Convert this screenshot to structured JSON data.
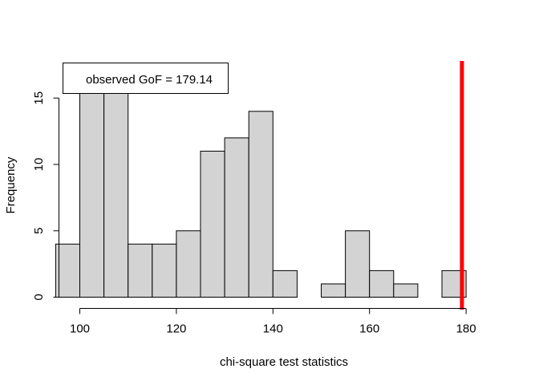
{
  "chart_data": {
    "type": "bar",
    "subtype": "histogram",
    "bin_edges": [
      95,
      100,
      105,
      110,
      115,
      120,
      125,
      130,
      135,
      140,
      145,
      150,
      155,
      160,
      165,
      170,
      175,
      180
    ],
    "values": [
      4,
      16,
      16,
      4,
      4,
      5,
      11,
      12,
      14,
      2,
      0,
      1,
      5,
      2,
      1,
      0,
      2
    ],
    "xlabel": "chi-square test statistics",
    "ylabel": "Frequency",
    "xlim": [
      95,
      180
    ],
    "ylim": [
      0,
      16
    ],
    "x_ticks": [
      100,
      120,
      140,
      160,
      180
    ],
    "y_ticks": [
      0,
      5,
      10,
      15
    ],
    "bar_color": "#d3d3d3",
    "reference_line": {
      "x": 179.14,
      "color": "#ff0000"
    },
    "legend": {
      "position": "top-left",
      "text": "observed GoF =  179.14"
    },
    "grid": false
  }
}
